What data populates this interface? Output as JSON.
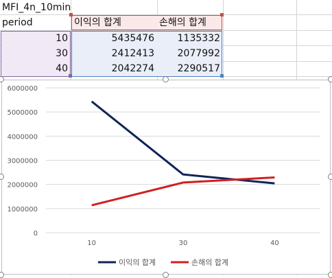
{
  "sheet": {
    "title_cell": "MFI_4n_10min",
    "header": {
      "period": "period",
      "profit": "이익의 합계",
      "loss": "손해의 합계"
    },
    "rows": [
      {
        "period": "10",
        "profit": "5435476",
        "loss": "1135332"
      },
      {
        "period": "30",
        "profit": "2412413",
        "loss": "2077992"
      },
      {
        "period": "40",
        "profit": "2042274",
        "loss": "2290517"
      }
    ]
  },
  "chart_data": {
    "type": "line",
    "categories": [
      "10",
      "30",
      "40"
    ],
    "series": [
      {
        "name": "이익의 합계",
        "values": [
          5435476,
          2412413,
          2042274
        ],
        "color": "#0f2357"
      },
      {
        "name": "손해의 합계",
        "values": [
          1135332,
          2077992,
          2290517
        ],
        "color": "#d11f1f"
      }
    ],
    "yticks": [
      "6000000",
      "5000000",
      "4000000",
      "3000000",
      "2000000",
      "1000000",
      "0"
    ],
    "ylim": [
      0,
      6000000
    ],
    "grid": true,
    "legend": "bottom"
  }
}
